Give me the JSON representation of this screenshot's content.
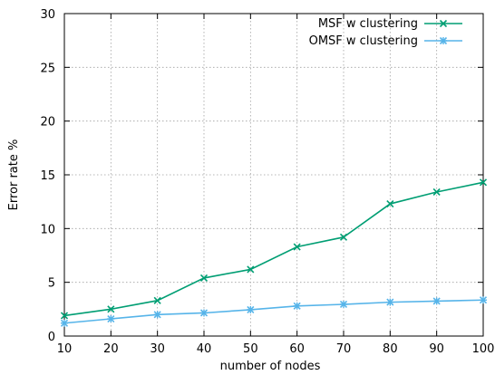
{
  "chart_data": {
    "type": "line",
    "title": "",
    "xlabel": "number of nodes",
    "ylabel": "Error rate %",
    "x": [
      10,
      20,
      30,
      40,
      50,
      60,
      70,
      80,
      90,
      100
    ],
    "xlim": [
      10,
      100
    ],
    "ylim": [
      0,
      30
    ],
    "xticks": [
      "10",
      "20",
      "30",
      "40",
      "50",
      "60",
      "70",
      "80",
      "90",
      "100"
    ],
    "yticks": [
      "0",
      "5",
      "10",
      "15",
      "20",
      "25",
      "30"
    ],
    "grid": true,
    "legend_position": "top-right",
    "series": [
      {
        "name": "MSF w clustering",
        "color": "#009e73",
        "marker": "x",
        "values": [
          1.9,
          2.5,
          3.3,
          5.4,
          6.2,
          8.3,
          9.2,
          12.3,
          13.4,
          14.3
        ]
      },
      {
        "name": "OMSF w clustering",
        "color": "#56b4e9",
        "marker": "asterisk",
        "values": [
          1.2,
          1.6,
          2.0,
          2.15,
          2.45,
          2.8,
          2.95,
          3.15,
          3.25,
          3.35
        ]
      }
    ]
  }
}
